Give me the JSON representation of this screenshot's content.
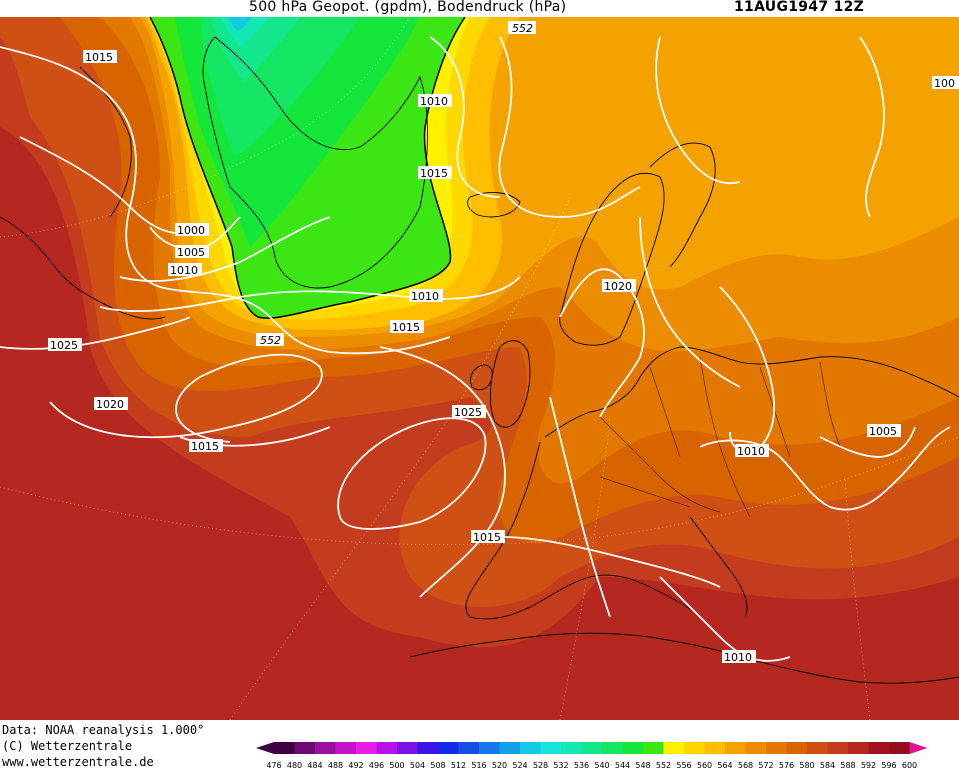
{
  "header": {
    "title": "500 hPa Geopot. (gpdm), Bodendruck (hPa)",
    "date": "11AUG1947 12Z"
  },
  "map": {
    "geopotential_labels": [
      "552",
      "552"
    ],
    "pressure_labels": [
      "1015",
      "1010",
      "1015",
      "1000",
      "1005",
      "1010",
      "1010",
      "1015",
      "1025",
      "1020",
      "1015",
      "1025",
      "1020",
      "1010",
      "1005",
      "1015",
      "1010",
      "100"
    ]
  },
  "footer": {
    "data_line": "Data: NOAA reanalysis 1.000°",
    "copyright_line": "(C) Wetterzentrale",
    "url_line": "www.wetterzentrale.de"
  },
  "legend": {
    "values": [
      "476",
      "480",
      "484",
      "488",
      "492",
      "496",
      "500",
      "504",
      "508",
      "512",
      "516",
      "520",
      "524",
      "528",
      "532",
      "536",
      "540",
      "544",
      "548",
      "552",
      "556",
      "560",
      "564",
      "568",
      "572",
      "576",
      "580",
      "584",
      "588",
      "592",
      "596",
      "600"
    ],
    "colors": [
      "#3c0040",
      "#6a0a70",
      "#9a109e",
      "#c414c8",
      "#e61ee8",
      "#b412e6",
      "#7812e6",
      "#3c14e6",
      "#1428e6",
      "#1450e6",
      "#1478e6",
      "#14a0e6",
      "#14c8e6",
      "#14e6dc",
      "#14e6b4",
      "#14e68c",
      "#14e664",
      "#14e63c",
      "#3ce614",
      "#fff000",
      "#ffd800",
      "#ffbe00",
      "#f4a200",
      "#ec8c00",
      "#e27800",
      "#d86400",
      "#ce5014",
      "#c43c1e",
      "#b42820",
      "#a01420",
      "#90101e"
    ]
  }
}
